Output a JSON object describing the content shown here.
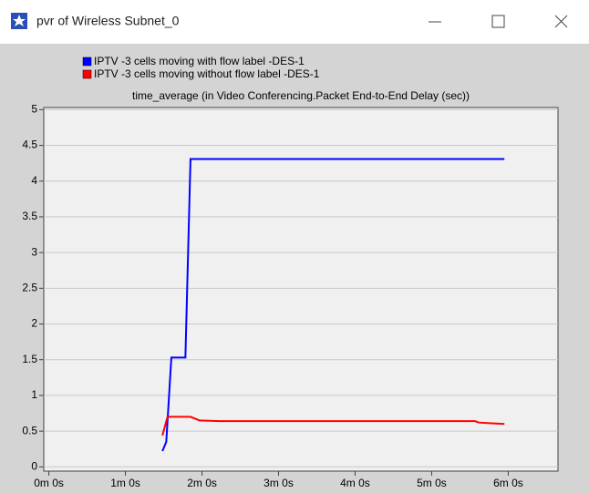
{
  "window": {
    "title": "pvr of Wireless Subnet_0"
  },
  "chart_data": {
    "type": "line",
    "title": "time_average (in Video Conferencing.Packet End-to-End Delay (sec))",
    "series": [
      {
        "name": "IPTV -3 cells  moving with flow label -DES-1",
        "color": "#0000ff",
        "x": [
          89,
          92,
          96,
          107,
          111,
          357
        ],
        "values": [
          0.22,
          0.35,
          1.53,
          1.53,
          4.31,
          4.31
        ]
      },
      {
        "name": "IPTV -3 cells  moving without flow label -DES-1",
        "color": "#ff0000",
        "x": [
          89,
          93,
          111,
          118,
          134,
          334,
          337,
          347,
          357
        ],
        "values": [
          0.44,
          0.7,
          0.7,
          0.65,
          0.64,
          0.64,
          0.62,
          0.61,
          0.6
        ]
      }
    ],
    "xlim": [
      -4,
      399
    ],
    "xticks": [
      {
        "value": 0,
        "label": "0m 0s"
      },
      {
        "value": 60,
        "label": "1m 0s"
      },
      {
        "value": 120,
        "label": "2m 0s"
      },
      {
        "value": 180,
        "label": "3m 0s"
      },
      {
        "value": 240,
        "label": "4m 0s"
      },
      {
        "value": 300,
        "label": "5m 0s"
      },
      {
        "value": 360,
        "label": "6m 0s"
      }
    ],
    "ylim": [
      -0.06,
      5.03
    ],
    "yticks": [
      0,
      0.5,
      1,
      1.5,
      2,
      2.5,
      3,
      3.5,
      4,
      4.5,
      5
    ],
    "grid": true
  }
}
